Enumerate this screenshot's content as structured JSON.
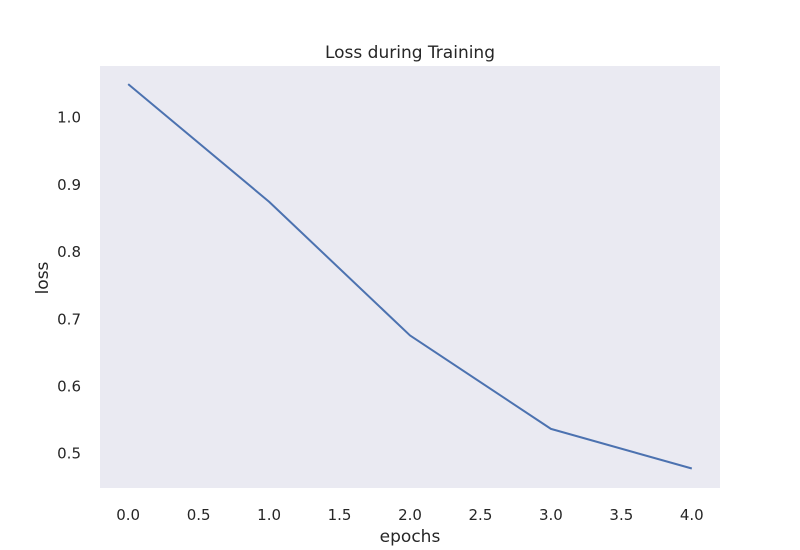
{
  "chart_data": {
    "type": "line",
    "title": "Loss during Training",
    "xlabel": "epochs",
    "ylabel": "loss",
    "x": [
      0.0,
      1.0,
      2.0,
      3.0,
      4.0
    ],
    "series": [
      {
        "values": [
          1.05,
          0.875,
          0.676,
          0.537,
          0.478
        ]
      }
    ],
    "xlim": [
      -0.2,
      4.2
    ],
    "ylim": [
      0.449,
      1.077
    ],
    "xticks": [
      "0.0",
      "0.5",
      "1.0",
      "1.5",
      "2.0",
      "2.5",
      "3.0",
      "3.5",
      "4.0"
    ],
    "xtick_values": [
      0.0,
      0.5,
      1.0,
      1.5,
      2.0,
      2.5,
      3.0,
      3.5,
      4.0
    ],
    "yticks": [
      "0.5",
      "0.6",
      "0.7",
      "0.8",
      "0.9",
      "1.0"
    ],
    "ytick_values": [
      0.5,
      0.6,
      0.7,
      0.8,
      0.9,
      1.0
    ],
    "grid": false,
    "colors": {
      "plot_background": "#eaeaf2",
      "line": "#4c72b0"
    }
  }
}
